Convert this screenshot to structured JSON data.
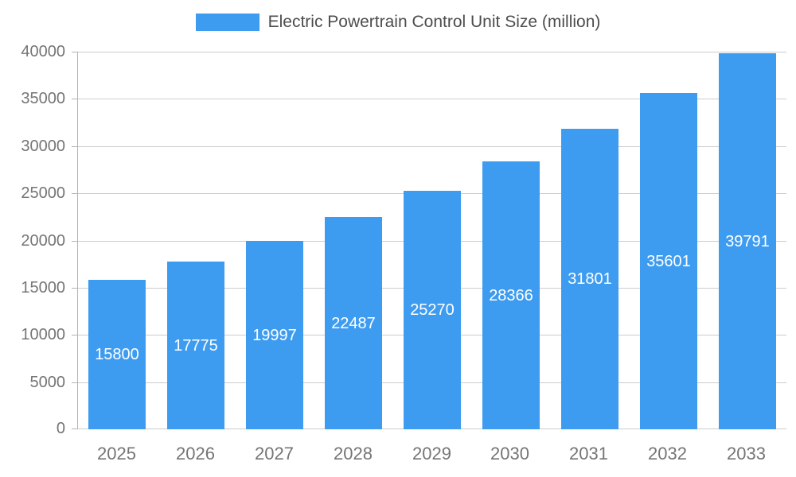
{
  "chart_data": {
    "type": "bar",
    "title": "Electric Powertrain Control Unit Size (million)",
    "categories": [
      "2025",
      "2026",
      "2027",
      "2028",
      "2029",
      "2030",
      "2031",
      "2032",
      "2033"
    ],
    "values": [
      15800,
      17775,
      19997,
      22487,
      25270,
      28366,
      31801,
      35601,
      39791
    ],
    "xlabel": "",
    "ylabel": "",
    "ylim": [
      0,
      40000
    ],
    "yticks": [
      0,
      5000,
      10000,
      15000,
      20000,
      25000,
      30000,
      35000,
      40000
    ],
    "grid": true,
    "legend_position": "top",
    "value_labels": "inside-center",
    "colors": {
      "bar": "#3E9CF0",
      "value_label": "#FFFFFF",
      "axis_text": "#757575",
      "legend_text": "#4D4D4D",
      "gridline": "#CCCCCC",
      "axis_line": "#B3B3B3",
      "background": "#FFFFFF"
    }
  }
}
